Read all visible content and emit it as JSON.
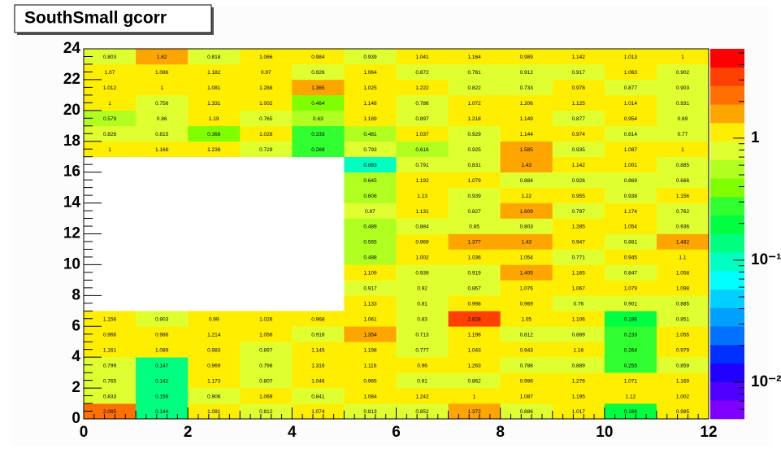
{
  "chart_data": {
    "type": "heatmap",
    "title": "SouthSmall gcorr",
    "xlim": [
      0,
      12
    ],
    "ylim": [
      0,
      24
    ],
    "xticks": [
      0,
      2,
      4,
      6,
      8,
      10,
      12
    ],
    "yticks": [
      0,
      2,
      4,
      6,
      8,
      10,
      12,
      14,
      16,
      18,
      20,
      22,
      24
    ],
    "zlim": [
      0.005,
      5.4
    ],
    "zscale": "log",
    "zticks": [
      {
        "value": 1,
        "label": "1"
      },
      {
        "value": 0.1,
        "label": "10⁻¹"
      },
      {
        "value": 0.01,
        "label": "10⁻²"
      }
    ],
    "palette": [
      "#7f00ff",
      "#5000ff",
      "#2000ff",
      "#0030ff",
      "#0070ff",
      "#00a0ff",
      "#00d0ff",
      "#00ffff",
      "#00ffc0",
      "#00ff80",
      "#00ff40",
      "#30ff30",
      "#80ff00",
      "#b0ff20",
      "#e0ff30",
      "#ffee00",
      "#ffa500",
      "#ff7000",
      "#ff4000",
      "#ff0000"
    ],
    "z": [
      [
        2.085,
        0.144,
        1.081,
        0.812,
        1.074,
        0.813,
        0.852,
        1.372,
        0.886,
        1.017,
        0.166,
        0.985
      ],
      [
        0.833,
        0.159,
        0.906,
        1.069,
        0.841,
        1.084,
        1.242,
        1,
        1.087,
        1.195,
        1.12,
        1.002
      ],
      [
        0.765,
        0.142,
        1.173,
        0.807,
        1.046,
        0.965,
        0.91,
        0.862,
        0.996,
        1.276,
        1.071,
        1.169
      ],
      [
        0.799,
        0.147,
        0.969,
        0.798,
        1.316,
        1.116,
        0.96,
        1.263,
        0.788,
        0.889,
        0.255,
        0.859
      ],
      [
        1.161,
        1.089,
        0.983,
        0.897,
        1.145,
        1.198,
        0.777,
        1.043,
        0.943,
        1.16,
        0.264,
        0.979
      ],
      [
        0.966,
        0.986,
        1.214,
        1.056,
        0.916,
        1.354,
        0.713,
        1.198,
        0.812,
        0.889,
        0.233,
        1.055
      ],
      [
        1.156,
        0.903,
        0.99,
        1.026,
        0.968,
        1.061,
        0.83,
        2.828,
        1.05,
        1.106,
        0.196,
        0.851
      ],
      [
        null,
        null,
        null,
        null,
        null,
        1.133,
        0.81,
        0.998,
        0.969,
        0.76,
        0.901,
        0.885
      ],
      [
        null,
        null,
        null,
        null,
        null,
        0.917,
        0.92,
        0.867,
        1.076,
        1.067,
        1.079,
        1.098
      ],
      [
        null,
        null,
        null,
        null,
        null,
        1.109,
        0.939,
        0.919,
        1.405,
        1.165,
        0.847,
        1.058
      ],
      [
        null,
        null,
        null,
        null,
        null,
        0.488,
        1.002,
        1.036,
        1.054,
        0.771,
        0.945,
        1.1
      ],
      [
        null,
        null,
        null,
        null,
        null,
        0.565,
        0.969,
        1.377,
        1.43,
        0.947,
        0.881,
        1.482
      ],
      [
        null,
        null,
        null,
        null,
        null,
        0.489,
        0.884,
        0.85,
        0.803,
        1.285,
        1.054,
        0.936
      ],
      [
        null,
        null,
        null,
        null,
        null,
        0.87,
        1.131,
        0.827,
        1.609,
        0.797,
        1.174,
        0.762
      ],
      [
        null,
        null,
        null,
        null,
        null,
        0.606,
        1.13,
        0.939,
        1.22,
        0.955,
        0.938,
        1.156
      ],
      [
        null,
        null,
        null,
        null,
        null,
        0.645,
        1.192,
        1.079,
        0.884,
        0.926,
        0.869,
        0.666
      ],
      [
        null,
        null,
        null,
        null,
        null,
        0.083,
        0.791,
        0.831,
        1.43,
        1.142,
        1.001,
        0.885
      ],
      [
        1,
        1.168,
        1.236,
        0.729,
        0.269,
        0.793,
        0.616,
        0.925,
        1.585,
        0.935,
        1.087,
        1
      ],
      [
        0.828,
        0.815,
        0.368,
        1.028,
        0.233,
        0.481,
        1.037,
        0.929,
        1.144,
        0.974,
        0.814,
        0.77
      ],
      [
        0.579,
        0.86,
        1.19,
        0.765,
        0.63,
        1.189,
        0.897,
        1.218,
        1.149,
        0.877,
        0.954,
        0.89
      ],
      [
        1,
        0.756,
        1.331,
        1.002,
        0.464,
        1.148,
        0.786,
        1.072,
        1.206,
        1.125,
        1.014,
        0.931
      ],
      [
        1.012,
        1,
        1.081,
        1.288,
        1.365,
        1.025,
        1.222,
        0.822,
        0.733,
        0.978,
        0.877,
        0.903
      ],
      [
        1.07,
        1.086,
        1.182,
        0.97,
        0.926,
        1.064,
        0.872,
        0.761,
        0.912,
        0.917,
        1.063,
        0.902
      ],
      [
        0.803,
        1.62,
        0.818,
        1.066,
        0.984,
        0.939,
        1.041,
        1.164,
        0.989,
        1.142,
        1.013,
        1
      ]
    ]
  }
}
